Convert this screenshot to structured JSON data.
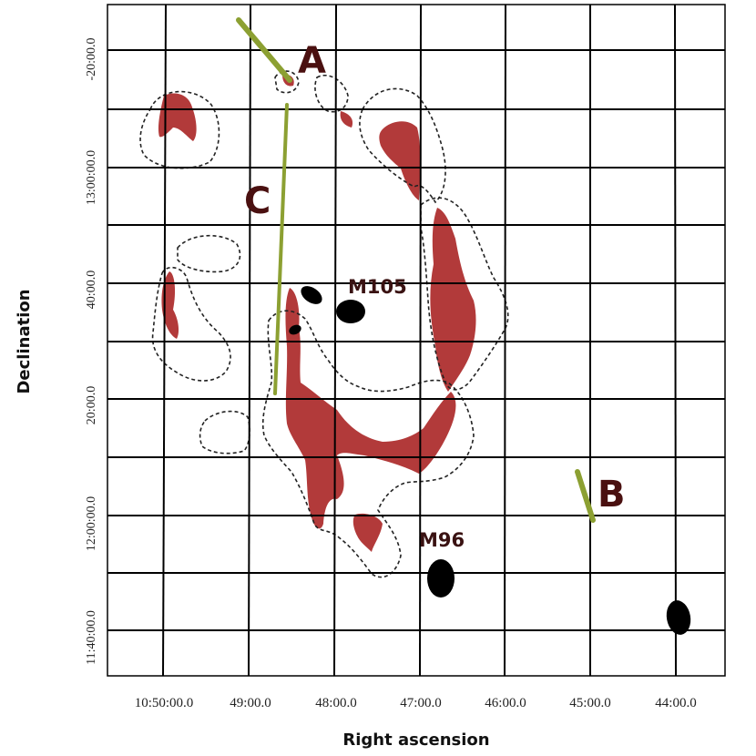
{
  "axes": {
    "x_title": "Right ascension",
    "y_title": "Declination",
    "x_ticks": [
      "10:50:00.0",
      "49:00.0",
      "48:00.0",
      "47:00.0",
      "46:00.0",
      "45:00.0",
      "44:00.0"
    ],
    "y_ticks": [
      "-20:00.0",
      "13:00:00.0",
      "40:00.0",
      "20:00.0",
      "12:00:00.0",
      "11:40:00.0"
    ]
  },
  "labels": {
    "a": "A",
    "b": "B",
    "c": "C",
    "m105": "M105",
    "m96": "M96"
  },
  "colors": {
    "hi_emission": "#b23a3a",
    "track": "#8ca032",
    "grid": "#000000",
    "contours": "#222222",
    "galaxies": "#000000"
  }
}
